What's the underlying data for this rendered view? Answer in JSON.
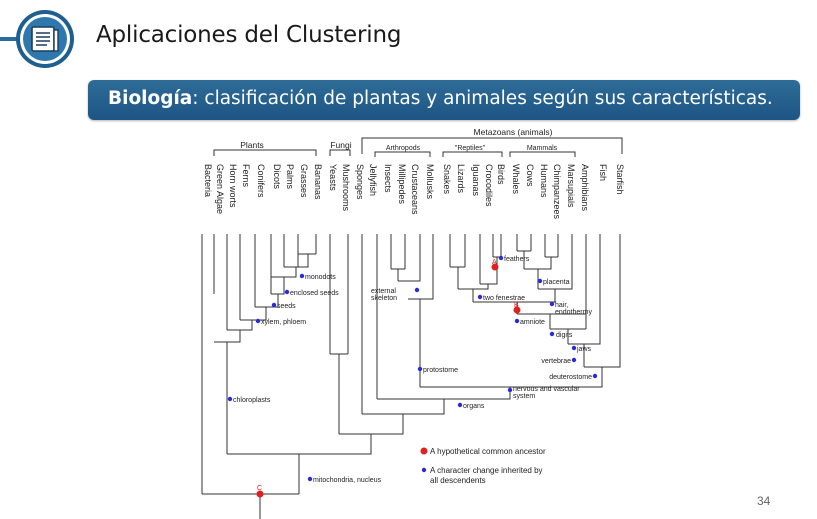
{
  "slide": {
    "title": "Aplicaciones del Clustering",
    "subtitle_bold": "Biología",
    "subtitle_rest": ": clasificación de plantas y animales según sus características.",
    "page_number": "34"
  },
  "logo": {
    "icon": "book-icon",
    "color": "#2a6e9e"
  },
  "tree": {
    "groups": {
      "plants": "Plants",
      "fungi": "Fungi",
      "metazoans": "Metazoans (animals)",
      "arthropods": "Arthropods",
      "reptiles": "\"Reptiles\"",
      "mammals": "Mammals"
    },
    "taxa": [
      "Bacteria",
      "Green Algae",
      "Horn worts",
      "Ferns",
      "Conifers",
      "Dicots",
      "Palms",
      "Grasses",
      "Bananas",
      "Yeasts",
      "Mushrooms",
      "Sponges",
      "Jellyfish",
      "Insects",
      "Millipedes",
      "Crustaceans",
      "Mollusks",
      "Snakes",
      "Lizards",
      "Iguanas",
      "Crocodiles",
      "Birds",
      "Whales",
      "Cows",
      "Humans",
      "Chimpanzees",
      "Marsupials",
      "Amphibians",
      "Fish",
      "Starfish"
    ],
    "characters": {
      "feathers": "feathers",
      "monodots": "monodots",
      "enclosed_seeds": "enclosed seeds",
      "seeds": "seeds",
      "xylem": "xylem, phloem",
      "external_skeleton_1": "external",
      "external_skeleton_2": "skeleton",
      "placenta": "placenta",
      "hair": "hair,",
      "endothermy": "endothermy",
      "two_fenestrae": "two fenestrae",
      "amniote": "amniote",
      "digits": "digits",
      "jaws": "jaws",
      "vertebrae": "vertebrae",
      "deuterostome": "deuterostome",
      "protostome": "protostome",
      "nervous_1": "nervous and vascular",
      "nervous_2": "system",
      "organs": "organs",
      "chloroplasts": "chloroplasts",
      "mitochondria": "mitochondria, nucleus"
    },
    "node_letters": {
      "a": "A",
      "b": "B",
      "c": "C"
    },
    "legend": {
      "red": "A hypothetical common ancestor",
      "blue_1": "A character change inherited by",
      "blue_2": "all descendents"
    },
    "colors": {
      "ancestor": "#e02020",
      "character": "#2a2ad8",
      "line": "#333333"
    }
  }
}
